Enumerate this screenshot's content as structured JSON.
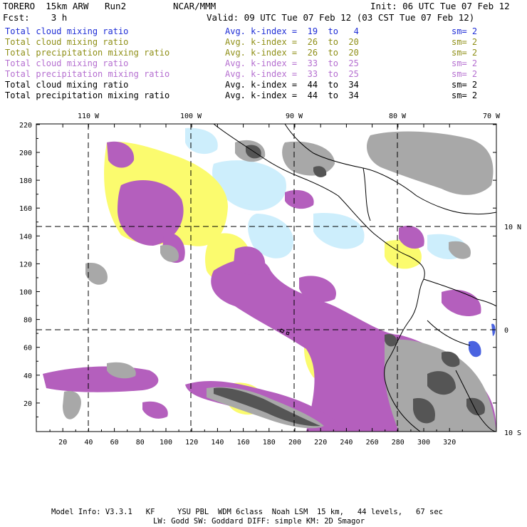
{
  "header": {
    "model": "TORERO  15km ARW   Run2",
    "center": "NCAR/MMM",
    "init": "Init: 06 UTC Tue 07 Feb 12",
    "fcst": "Fcst:    3 h",
    "valid": "Valid: 09 UTC Tue 07 Feb 12 (03 CST Tue 07 Feb 12)"
  },
  "legend": [
    {
      "field": "Total cloud mixing ratio",
      "kindex": "Avg. k-index =  19  to   4",
      "sm": "sm= 2",
      "color": "#1f2ed6"
    },
    {
      "field": "Total cloud mixing ratio",
      "kindex": "Avg. k-index =  26  to  20",
      "sm": "sm= 2",
      "color": "#8f8f17"
    },
    {
      "field": "Total precipitation mixing ratio",
      "kindex": "Avg. k-index =  26  to  20",
      "sm": "sm= 2",
      "color": "#8f8f17"
    },
    {
      "field": "Total cloud mixing ratio",
      "kindex": "Avg. k-index =  33  to  25",
      "sm": "sm= 2",
      "color": "#b56fd0"
    },
    {
      "field": "Total precipitation mixing ratio",
      "kindex": "Avg. k-index =  33  to  25",
      "sm": "sm= 2",
      "color": "#b56fd0"
    },
    {
      "field": "Total cloud mixing ratio",
      "kindex": "Avg. k-index =  44  to  34",
      "sm": "sm= 2",
      "color": "#000000"
    },
    {
      "field": "Total precipitation mixing ratio",
      "kindex": "Avg. k-index =  44  to  34",
      "sm": "sm= 2",
      "color": "#000000"
    }
  ],
  "map": {
    "lon_labels": [
      "110 W",
      "100 W",
      "90 W",
      "80 W",
      "70 W"
    ],
    "lat_labels": [
      "10 N",
      "0",
      "10 S"
    ],
    "y_ticks": [
      "220",
      "200",
      "180",
      "160",
      "140",
      "120",
      "100",
      "80",
      "60",
      "40",
      "20"
    ],
    "x_ticks": [
      "20",
      "40",
      "60",
      "80",
      "100",
      "120",
      "140",
      "160",
      "180",
      "200",
      "220",
      "240",
      "260",
      "280",
      "300",
      "320"
    ],
    "colors": {
      "light_blue": "#cdeefc",
      "yellow": "#fbfb6e",
      "purple": "#b45fbd",
      "gray": "#a8a8a8",
      "dark_gray": "#555555",
      "blue": "#4a63e0"
    }
  },
  "footer": {
    "line1": "Model Info: V3.3.1   KF     YSU PBL  WDM 6class  Noah LSM  15 km,   44 levels,   67 sec",
    "line2": "LW: Godd SW: Goddard DIFF: simple KM: 2D Smagor"
  }
}
